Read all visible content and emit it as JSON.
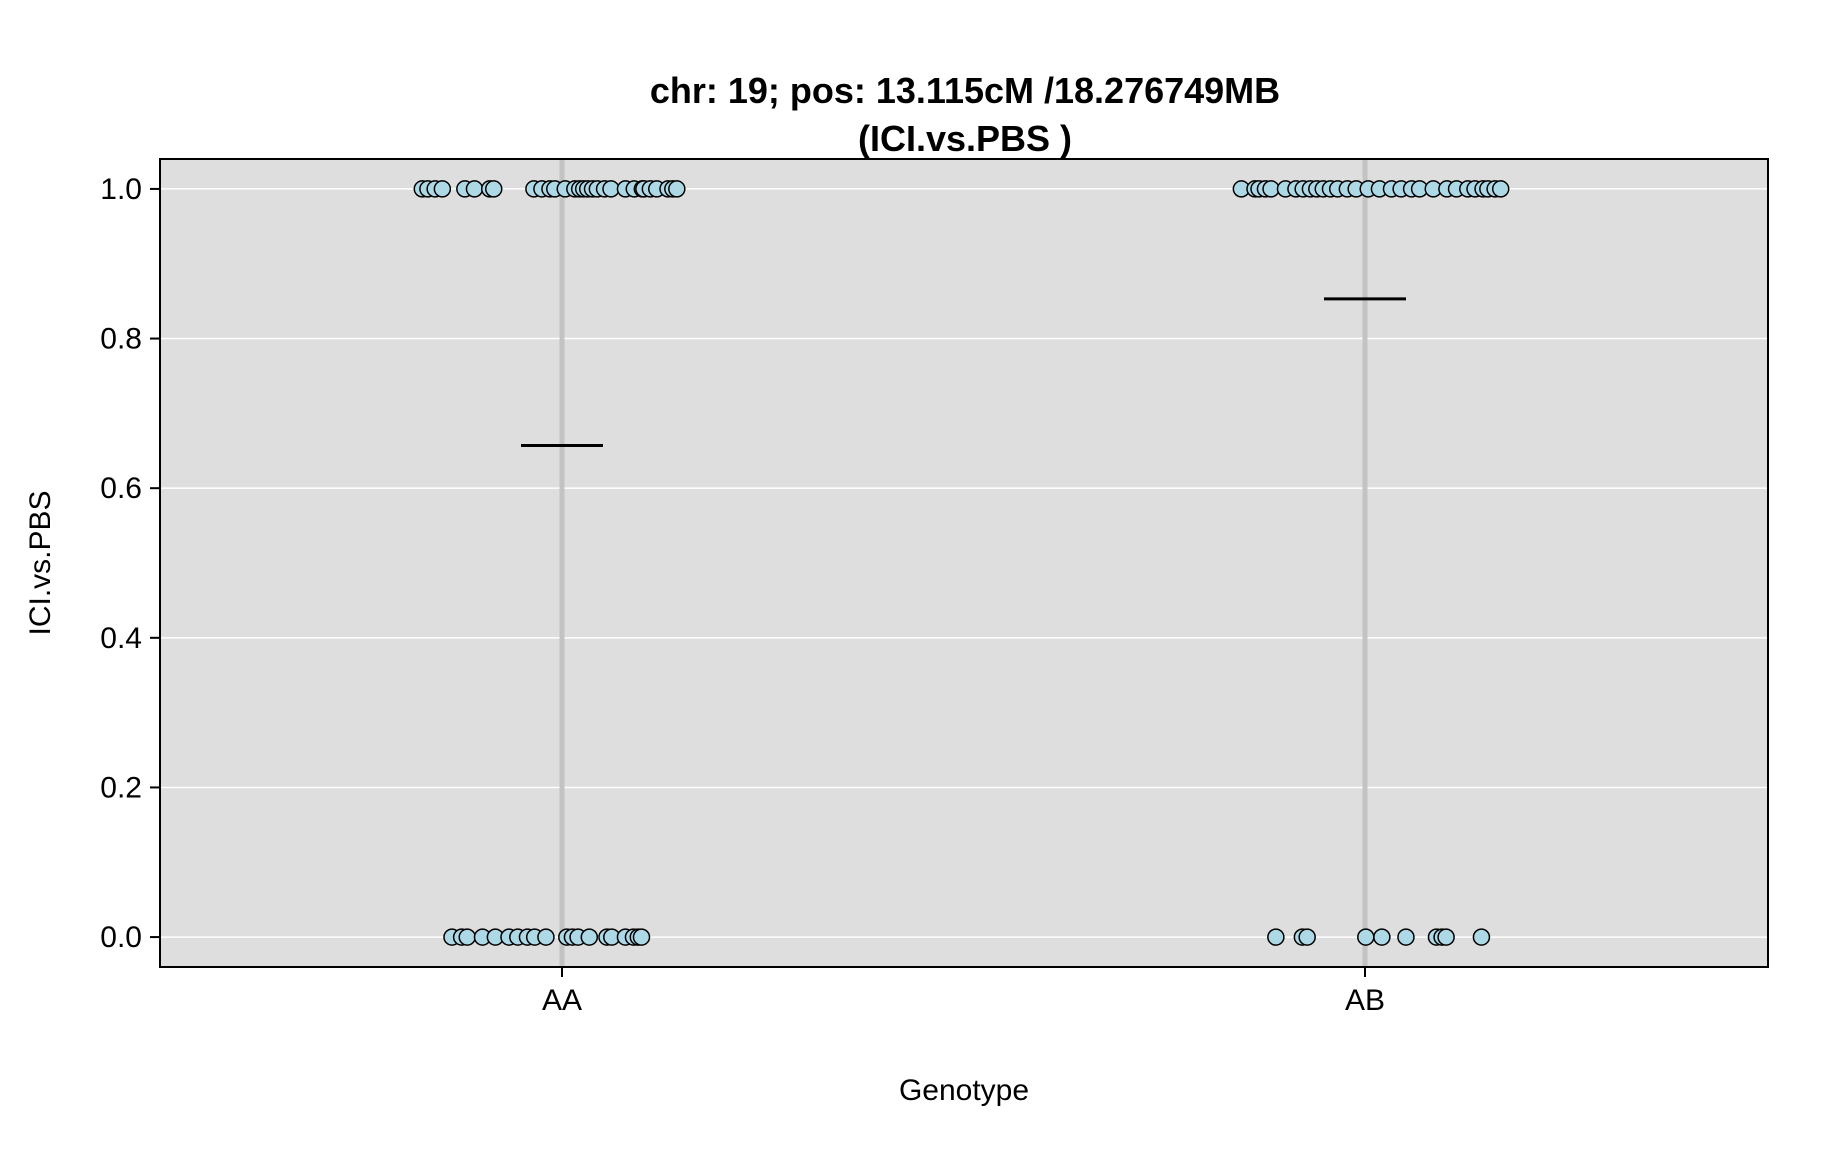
{
  "chart_data": {
    "type": "scatter",
    "title": "chr: 19; pos: 13.115cM /18.276749MB",
    "subtitle": "(ICI.vs.PBS )",
    "xlabel": "Genotype",
    "ylabel": "ICI.vs.PBS",
    "categories": [
      "AA",
      "AB"
    ],
    "ylim": [
      -0.04,
      1.04
    ],
    "yticks": [
      "0.0",
      "0.2",
      "0.4",
      "0.6",
      "0.8",
      "1.0"
    ],
    "grid": true,
    "background_color": "#dedede",
    "point_color": "#add8e6",
    "mean_line_color": "#000000",
    "series": [
      {
        "category": "AA",
        "mean": 0.657,
        "points": [
          {
            "x": -0.174,
            "y": 1
          },
          {
            "x": -0.167,
            "y": 1
          },
          {
            "x": -0.158,
            "y": 1
          },
          {
            "x": -0.149,
            "y": 1
          },
          {
            "x": -0.121,
            "y": 1
          },
          {
            "x": -0.109,
            "y": 1
          },
          {
            "x": -0.09,
            "y": 1
          },
          {
            "x": -0.085,
            "y": 1
          },
          {
            "x": -0.035,
            "y": 1
          },
          {
            "x": -0.025,
            "y": 1
          },
          {
            "x": -0.015,
            "y": 1
          },
          {
            "x": -0.009,
            "y": 1
          },
          {
            "x": 0.004,
            "y": 1
          },
          {
            "x": 0.016,
            "y": 1
          },
          {
            "x": 0.022,
            "y": 1
          },
          {
            "x": 0.027,
            "y": 1
          },
          {
            "x": 0.032,
            "y": 1
          },
          {
            "x": 0.038,
            "y": 1
          },
          {
            "x": 0.044,
            "y": 1
          },
          {
            "x": 0.053,
            "y": 1
          },
          {
            "x": 0.061,
            "y": 1
          },
          {
            "x": 0.079,
            "y": 1
          },
          {
            "x": 0.09,
            "y": 1
          },
          {
            "x": 0.1,
            "y": 1
          },
          {
            "x": 0.102,
            "y": 1
          },
          {
            "x": 0.11,
            "y": 1
          },
          {
            "x": 0.118,
            "y": 1
          },
          {
            "x": 0.132,
            "y": 1
          },
          {
            "x": 0.138,
            "y": 1
          },
          {
            "x": 0.143,
            "y": 1
          },
          {
            "x": -0.137,
            "y": 0
          },
          {
            "x": -0.125,
            "y": 0
          },
          {
            "x": -0.118,
            "y": 0
          },
          {
            "x": -0.099,
            "y": 0
          },
          {
            "x": -0.083,
            "y": 0
          },
          {
            "x": -0.066,
            "y": 0
          },
          {
            "x": -0.055,
            "y": 0
          },
          {
            "x": -0.043,
            "y": 0
          },
          {
            "x": -0.034,
            "y": 0
          },
          {
            "x": -0.02,
            "y": 0
          },
          {
            "x": 0.006,
            "y": 0
          },
          {
            "x": 0.013,
            "y": 0
          },
          {
            "x": 0.02,
            "y": 0
          },
          {
            "x": 0.034,
            "y": 0
          },
          {
            "x": 0.056,
            "y": 0
          },
          {
            "x": 0.062,
            "y": 0
          },
          {
            "x": 0.079,
            "y": 0
          },
          {
            "x": 0.089,
            "y": 0
          },
          {
            "x": 0.095,
            "y": 0
          },
          {
            "x": 0.099,
            "y": 0
          }
        ]
      },
      {
        "category": "AB",
        "mean": 0.853,
        "points": [
          {
            "x": -0.154,
            "y": 1
          },
          {
            "x": -0.137,
            "y": 1
          },
          {
            "x": -0.132,
            "y": 1
          },
          {
            "x": -0.124,
            "y": 1
          },
          {
            "x": -0.117,
            "y": 1
          },
          {
            "x": -0.099,
            "y": 1
          },
          {
            "x": -0.086,
            "y": 1
          },
          {
            "x": -0.077,
            "y": 1
          },
          {
            "x": -0.068,
            "y": 1
          },
          {
            "x": -0.06,
            "y": 1
          },
          {
            "x": -0.052,
            "y": 1
          },
          {
            "x": -0.043,
            "y": 1
          },
          {
            "x": -0.034,
            "y": 1
          },
          {
            "x": -0.022,
            "y": 1
          },
          {
            "x": -0.011,
            "y": 1
          },
          {
            "x": 0.004,
            "y": 1
          },
          {
            "x": 0.018,
            "y": 1
          },
          {
            "x": 0.033,
            "y": 1
          },
          {
            "x": 0.045,
            "y": 1
          },
          {
            "x": 0.058,
            "y": 1
          },
          {
            "x": 0.068,
            "y": 1
          },
          {
            "x": 0.085,
            "y": 1
          },
          {
            "x": 0.102,
            "y": 1
          },
          {
            "x": 0.114,
            "y": 1
          },
          {
            "x": 0.128,
            "y": 1
          },
          {
            "x": 0.137,
            "y": 1
          },
          {
            "x": 0.147,
            "y": 1
          },
          {
            "x": 0.153,
            "y": 1
          },
          {
            "x": 0.162,
            "y": 1
          },
          {
            "x": 0.169,
            "y": 1
          },
          {
            "x": -0.111,
            "y": 0
          },
          {
            "x": -0.078,
            "y": 0
          },
          {
            "x": -0.072,
            "y": 0
          },
          {
            "x": 0.001,
            "y": 0
          },
          {
            "x": 0.021,
            "y": 0
          },
          {
            "x": 0.051,
            "y": 0
          },
          {
            "x": 0.089,
            "y": 0
          },
          {
            "x": 0.096,
            "y": 0
          },
          {
            "x": 0.101,
            "y": 0
          },
          {
            "x": 0.145,
            "y": 0
          }
        ]
      }
    ]
  }
}
